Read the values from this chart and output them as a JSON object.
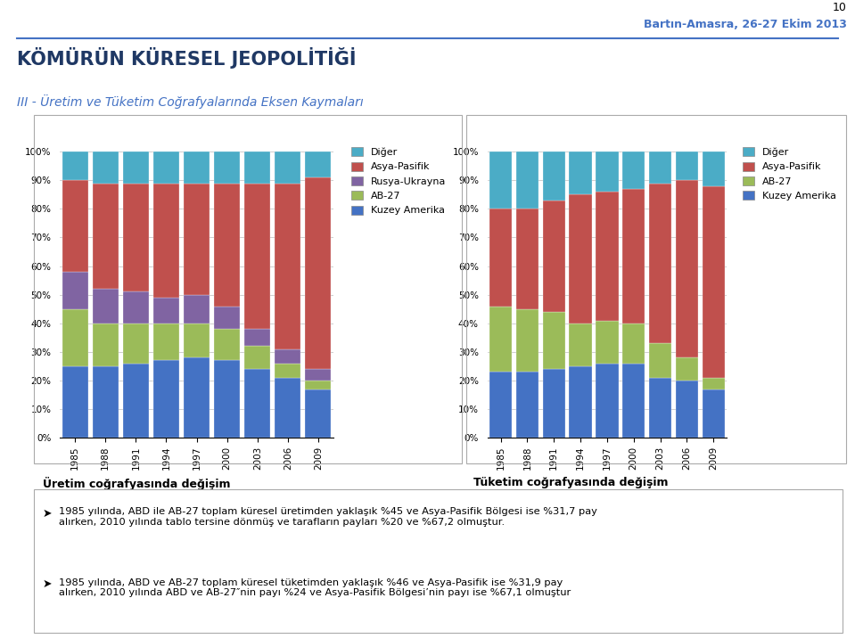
{
  "years": [
    1985,
    1988,
    1991,
    1994,
    1997,
    2000,
    2003,
    2006,
    2009
  ],
  "production": {
    "kuzey_amerika": [
      25,
      25,
      26,
      27,
      28,
      27,
      24,
      21,
      17
    ],
    "ab27": [
      20,
      15,
      14,
      13,
      12,
      11,
      8,
      5,
      3
    ],
    "rusya_ukrayna": [
      13,
      12,
      11,
      9,
      10,
      8,
      6,
      5,
      4
    ],
    "asya_pasifik": [
      32,
      37,
      38,
      40,
      39,
      43,
      51,
      58,
      67
    ],
    "diger": [
      10,
      11,
      11,
      11,
      11,
      11,
      11,
      11,
      9
    ]
  },
  "consumption": {
    "kuzey_amerika": [
      23,
      23,
      24,
      25,
      26,
      26,
      21,
      20,
      17
    ],
    "ab27": [
      23,
      22,
      20,
      15,
      15,
      14,
      12,
      8,
      4
    ],
    "asya_pasifik": [
      34,
      35,
      39,
      45,
      45,
      47,
      56,
      62,
      67
    ],
    "diger": [
      20,
      20,
      17,
      15,
      14,
      13,
      11,
      10,
      12
    ]
  },
  "colors": {
    "kuzey_amerika": "#4472C4",
    "ab27": "#9BBB59",
    "rusya_ukrayna": "#8064A2",
    "asya_pasifik": "#C0504D",
    "diger": "#4BACC6"
  },
  "title_main": "KÖMÜRÜN KÜRESEL JEOPOLİTİĞİ",
  "title_sub": "III - Üretim ve Tüketim Coğrafyalarında Eksen Kaymaları",
  "header": "Bartın-Amasra, 26-27 Ekim 2013",
  "page_num": "10",
  "label_uretim": "Üretim coğrafyasında değişim",
  "label_tuketim": "Tüketim coğrafyasında değişim",
  "legend1": [
    "Diğer",
    "Asya-Pasifik",
    "Rusya-Ukrayna",
    "AB-27",
    "Kuzey Amerika"
  ],
  "legend2": [
    "Diğer",
    "Asya-Pasifik",
    "AB-27",
    "Kuzey Amerika"
  ],
  "bullet1": "1985 yılında, ABD ile AB-27 toplam küresel üretimden yaklaşık %45 ve Asya-Pasifik Bölgesi ise %31,7 pay\nalırken, 2010 yılında tablo tersine dönmüş ve tarafların payları %20 ve %67,2 olmuştur.",
  "bullet2": "1985 yılında, ABD ve AB-27 toplam küresel tüketimden yaklaşık %46 ve Asya-Pasifik ise %31,9 pay\nalırken, 2010 yılında ABD ve AB-27″nin payı %24 ve Asya-Pasifik Bölgesi’nin payı ise %67,1 olmuştur"
}
